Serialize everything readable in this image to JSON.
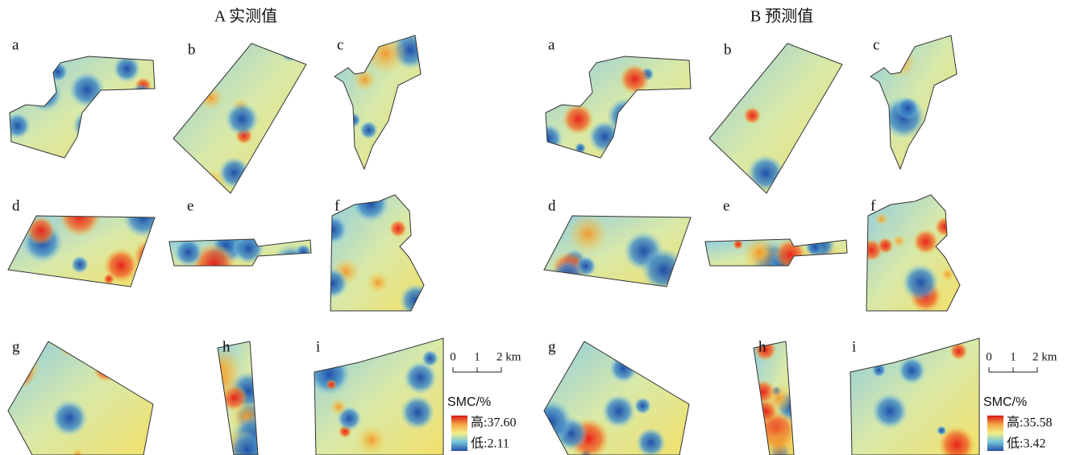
{
  "panels": [
    {
      "title": "A 实测值",
      "maps": [
        "a",
        "b",
        "c",
        "d",
        "e",
        "f",
        "g",
        "h",
        "i"
      ],
      "scale_bar": [
        "0",
        "1",
        "2 km"
      ],
      "legend": {
        "title": "SMC/%",
        "high": "高:37.60",
        "low": "低:2.11"
      }
    },
    {
      "title": "B 预测值",
      "maps": [
        "a",
        "b",
        "c",
        "d",
        "e",
        "f",
        "g",
        "h",
        "i"
      ],
      "scale_bar": [
        "0",
        "1",
        "2 km"
      ],
      "legend": {
        "title": "SMC/%",
        "high": "高:35.58",
        "low": "低:3.42"
      }
    }
  ]
}
